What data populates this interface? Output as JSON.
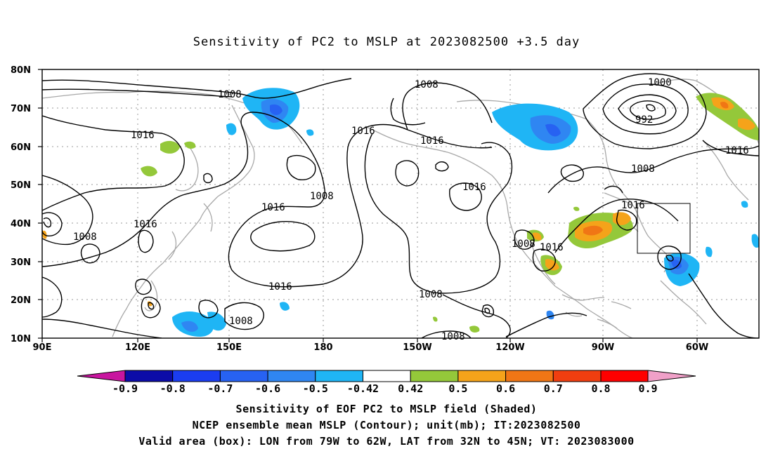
{
  "title": "Sensitivity of PC2 to MSLP at 2023082500 +3.5 day",
  "lat_labels": [
    "80N",
    "70N",
    "60N",
    "50N",
    "40N",
    "30N",
    "20N",
    "10N"
  ],
  "lon_labels": [
    "90E",
    "120E",
    "150E",
    "180",
    "150W",
    "120W",
    "90W",
    "60W"
  ],
  "contour_labels": [
    "1008",
    "1016",
    "1008",
    "1016",
    "1016",
    "1008",
    "1016",
    "1008",
    "1016",
    "1016",
    "1008",
    "1016",
    "1000",
    "992",
    "1008",
    "1016",
    "1016",
    "1008",
    "1016",
    "1008",
    "1008"
  ],
  "colorbar": {
    "ticks": [
      "-0.9",
      "-0.8",
      "-0.7",
      "-0.6",
      "-0.5",
      "-0.42",
      "0.42",
      "0.5",
      "0.6",
      "0.7",
      "0.8",
      "0.9"
    ],
    "colors": [
      "#c8159f",
      "#0c0ca8",
      "#1b3df0",
      "#2762f2",
      "#2f86f2",
      "#1fb5f5",
      "#ffffff",
      "#94c83a",
      "#f5a31a",
      "#f07615",
      "#f03e10",
      "#ff0000",
      "#f0a0c8"
    ]
  },
  "captions": {
    "line1": "Sensitivity of EOF PC2 to MSLP field (Shaded)",
    "line2": "NCEP ensemble mean MSLP (Contour); unit(mb); IT:2023082500",
    "line3": "Valid area (box): LON from 79W to 62W, LAT from 32N to 45N; VT: 2023083000"
  }
}
